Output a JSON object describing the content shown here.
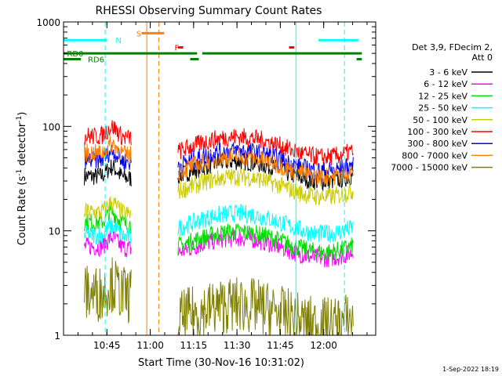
{
  "chart_data": {
    "type": "line",
    "title": "RHESSI Observing Summary Count Rates",
    "xlabel": "Start Time (30-Nov-16 10:31:02)",
    "ylabel": "Count Rate (s",
    "ylabel_sup": "-1",
    "ylabel_mid": " detector",
    "ylabel_end": ")",
    "x_range_min": [
      10.5,
      12.3
    ],
    "y_range": [
      1,
      1000
    ],
    "y_scale": "log",
    "x_ticks": [
      {
        "value": 10.75,
        "label": "10:45"
      },
      {
        "value": 11.0,
        "label": "11:00"
      },
      {
        "value": 11.25,
        "label": "11:15"
      },
      {
        "value": 11.5,
        "label": "11:30"
      },
      {
        "value": 11.75,
        "label": "11:45"
      },
      {
        "value": 12.0,
        "label": "12:00"
      }
    ],
    "y_ticks": [
      {
        "value": 1,
        "label": "1"
      },
      {
        "value": 10,
        "label": "10"
      },
      {
        "value": 100,
        "label": "100"
      },
      {
        "value": 1000,
        "label": "1000"
      }
    ],
    "legend": {
      "header_line1": "Det 3,9, FDecim 2,",
      "header_line2": "Att 0",
      "placement": "right"
    },
    "series": [
      {
        "name": "3 - 6 keV",
        "color": "#000000",
        "level_a": 33,
        "level_b": 38
      },
      {
        "name": "6 - 12 keV",
        "color": "#ff00ff",
        "level_a": 7,
        "level_b": 7
      },
      {
        "name": "12 - 25 keV",
        "color": "#00dd00",
        "level_a": 12,
        "level_b": 8
      },
      {
        "name": "25 - 50 keV",
        "color": "#00ffff",
        "level_a": 9,
        "level_b": 12
      },
      {
        "name": "50 - 100 keV",
        "color": "#cccc00",
        "level_a": 15,
        "level_b": 27
      },
      {
        "name": "100 - 300 keV",
        "color": "#ff0000",
        "level_a": 80,
        "level_b": 65
      },
      {
        "name": "300 - 800 keV",
        "color": "#0000ff",
        "level_a": 47,
        "level_b": 48
      },
      {
        "name": "800 - 7000 keV",
        "color": "#ff8000",
        "level_a": 55,
        "level_b": 42
      },
      {
        "name": "7000 - 15000 keV",
        "color": "#808000",
        "level_a": 2.5,
        "level_b": 1.6
      }
    ],
    "gaps": [
      [
        10.93,
        11.15
      ]
    ],
    "flag_bars": [
      {
        "name": "N",
        "color": "#00ffff",
        "label_color": "#00ffff",
        "segments": [
          [
            10.5,
            10.75
          ],
          [
            11.97,
            12.2
          ]
        ],
        "y": 670,
        "label": "N",
        "label_x": 10.8
      },
      {
        "name": "S",
        "color": "#ff8000",
        "label_color": "#ff8000",
        "segments": [
          [
            10.95,
            11.08
          ]
        ],
        "y": 780,
        "label": "S",
        "label_x": 10.92
      },
      {
        "name": "F",
        "color": "#ff0000",
        "label_color": "#ff0000",
        "segments": [
          [
            11.16,
            11.19
          ],
          [
            11.8,
            11.83
          ]
        ],
        "y": 570,
        "label": "F",
        "label_x": 11.14
      },
      {
        "name": "RD0",
        "color": "#008000",
        "label_color": "#008000",
        "segments": [
          [
            10.5,
            11.27
          ],
          [
            11.3,
            12.22
          ]
        ],
        "y": 500,
        "label": "RD0",
        "label_x": 10.52
      },
      {
        "name": "RD6",
        "color": "#008000",
        "label_color": "#008000",
        "segments": [
          [
            10.5,
            10.6
          ],
          [
            11.23,
            11.28
          ],
          [
            12.19,
            12.22
          ]
        ],
        "y": 440,
        "label": "RD6",
        "label_x": 10.64
      }
    ],
    "vlines": [
      {
        "x": 10.74,
        "color": "#00ffff",
        "style": "dashed"
      },
      {
        "x": 10.98,
        "color": "#ff8000",
        "style": "solid"
      },
      {
        "x": 11.05,
        "color": "#ff8000",
        "style": "dashed"
      },
      {
        "x": 11.84,
        "color": "#00ffff",
        "style": "solid"
      },
      {
        "x": 12.12,
        "color": "#00ffff",
        "style": "dashed"
      }
    ]
  },
  "footer": {
    "date": "1-Sep-2022 18:19"
  }
}
